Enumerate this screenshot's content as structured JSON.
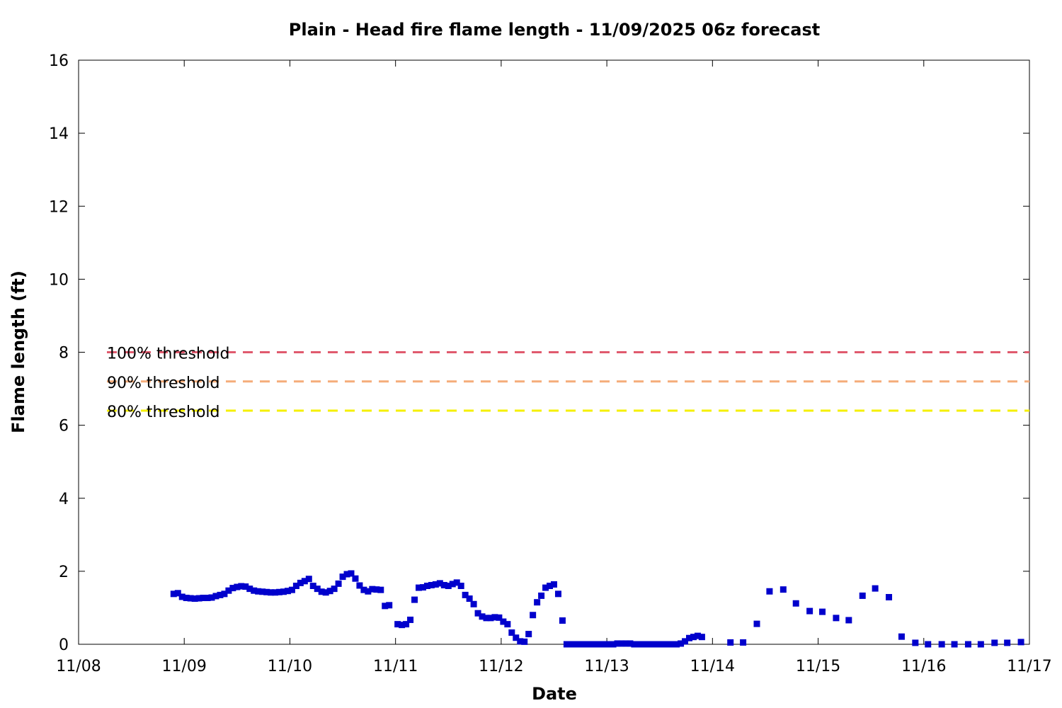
{
  "chart_data": {
    "type": "scatter",
    "title": "Plain - Head fire flame length - 11/09/2025 06z forecast",
    "xlabel": "Date",
    "ylabel": "Flame length (ft)",
    "x_tick_labels": [
      "11/08",
      "11/09",
      "11/10",
      "11/11",
      "11/12",
      "11/13",
      "11/14",
      "11/15",
      "11/16",
      "11/17"
    ],
    "xlim_days": [
      0,
      9
    ],
    "ylim": [
      0,
      16
    ],
    "y_ticks": [
      "0",
      "2",
      "4",
      "6",
      "8",
      "10",
      "12",
      "14",
      "16"
    ],
    "grid": false,
    "legend_placement": "left",
    "thresholds": [
      {
        "name": "100% threshold",
        "value": 8.0,
        "color": "#e05a6e"
      },
      {
        "name": "90% threshold",
        "value": 7.2,
        "color": "#f5ad7a"
      },
      {
        "name": "80% threshold",
        "value": 6.4,
        "color": "#f5f000"
      }
    ],
    "series": [
      {
        "marker_color": "#0000cc",
        "points": [
          [
            0.9,
            1.38
          ],
          [
            0.94,
            1.4
          ],
          [
            0.98,
            1.3
          ],
          [
            1.02,
            1.27
          ],
          [
            1.06,
            1.26
          ],
          [
            1.1,
            1.25
          ],
          [
            1.14,
            1.26
          ],
          [
            1.18,
            1.27
          ],
          [
            1.22,
            1.27
          ],
          [
            1.26,
            1.28
          ],
          [
            1.3,
            1.32
          ],
          [
            1.34,
            1.35
          ],
          [
            1.38,
            1.38
          ],
          [
            1.42,
            1.47
          ],
          [
            1.46,
            1.54
          ],
          [
            1.5,
            1.57
          ],
          [
            1.54,
            1.59
          ],
          [
            1.58,
            1.58
          ],
          [
            1.62,
            1.52
          ],
          [
            1.66,
            1.47
          ],
          [
            1.7,
            1.45
          ],
          [
            1.74,
            1.44
          ],
          [
            1.78,
            1.43
          ],
          [
            1.82,
            1.42
          ],
          [
            1.86,
            1.42
          ],
          [
            1.9,
            1.43
          ],
          [
            1.94,
            1.44
          ],
          [
            1.98,
            1.46
          ],
          [
            2.02,
            1.49
          ],
          [
            2.06,
            1.6
          ],
          [
            2.1,
            1.68
          ],
          [
            2.14,
            1.73
          ],
          [
            2.18,
            1.79
          ],
          [
            2.22,
            1.6
          ],
          [
            2.26,
            1.52
          ],
          [
            2.3,
            1.44
          ],
          [
            2.34,
            1.42
          ],
          [
            2.38,
            1.46
          ],
          [
            2.42,
            1.52
          ],
          [
            2.46,
            1.66
          ],
          [
            2.5,
            1.85
          ],
          [
            2.54,
            1.92
          ],
          [
            2.58,
            1.94
          ],
          [
            2.62,
            1.8
          ],
          [
            2.66,
            1.61
          ],
          [
            2.7,
            1.49
          ],
          [
            2.74,
            1.45
          ],
          [
            2.78,
            1.51
          ],
          [
            2.82,
            1.5
          ],
          [
            2.86,
            1.49
          ],
          [
            2.9,
            1.05
          ],
          [
            2.94,
            1.07
          ],
          [
            3.02,
            0.55
          ],
          [
            3.06,
            0.53
          ],
          [
            3.1,
            0.55
          ],
          [
            3.14,
            0.67
          ],
          [
            3.18,
            1.22
          ],
          [
            3.22,
            1.55
          ],
          [
            3.26,
            1.56
          ],
          [
            3.3,
            1.6
          ],
          [
            3.34,
            1.62
          ],
          [
            3.38,
            1.64
          ],
          [
            3.42,
            1.67
          ],
          [
            3.46,
            1.62
          ],
          [
            3.5,
            1.6
          ],
          [
            3.54,
            1.65
          ],
          [
            3.58,
            1.69
          ],
          [
            3.62,
            1.6
          ],
          [
            3.66,
            1.35
          ],
          [
            3.7,
            1.25
          ],
          [
            3.74,
            1.1
          ],
          [
            3.78,
            0.85
          ],
          [
            3.82,
            0.76
          ],
          [
            3.86,
            0.72
          ],
          [
            3.9,
            0.72
          ],
          [
            3.94,
            0.74
          ],
          [
            3.98,
            0.73
          ],
          [
            4.02,
            0.62
          ],
          [
            4.06,
            0.55
          ],
          [
            4.1,
            0.32
          ],
          [
            4.14,
            0.18
          ],
          [
            4.18,
            0.08
          ],
          [
            4.22,
            0.07
          ],
          [
            4.26,
            0.28
          ],
          [
            4.3,
            0.8
          ],
          [
            4.34,
            1.15
          ],
          [
            4.38,
            1.33
          ],
          [
            4.42,
            1.55
          ],
          [
            4.46,
            1.6
          ],
          [
            4.5,
            1.64
          ],
          [
            4.54,
            1.38
          ],
          [
            4.58,
            0.65
          ],
          [
            4.62,
            0.0
          ],
          [
            4.66,
            0.0
          ],
          [
            4.7,
            0.0
          ],
          [
            4.74,
            0.0
          ],
          [
            4.78,
            0.0
          ],
          [
            4.82,
            0.0
          ],
          [
            4.86,
            0.0
          ],
          [
            4.9,
            0.0
          ],
          [
            4.94,
            0.0
          ],
          [
            4.98,
            0.0
          ],
          [
            5.02,
            0.0
          ],
          [
            5.06,
            0.0
          ],
          [
            5.1,
            0.02
          ],
          [
            5.14,
            0.02
          ],
          [
            5.18,
            0.02
          ],
          [
            5.22,
            0.02
          ],
          [
            5.26,
            0.0
          ],
          [
            5.3,
            0.0
          ],
          [
            5.34,
            0.0
          ],
          [
            5.38,
            0.0
          ],
          [
            5.42,
            0.0
          ],
          [
            5.46,
            0.0
          ],
          [
            5.5,
            0.0
          ],
          [
            5.54,
            0.0
          ],
          [
            5.58,
            0.0
          ],
          [
            5.62,
            0.0
          ],
          [
            5.66,
            0.0
          ],
          [
            5.7,
            0.02
          ],
          [
            5.74,
            0.08
          ],
          [
            5.78,
            0.17
          ],
          [
            5.82,
            0.2
          ],
          [
            5.86,
            0.23
          ],
          [
            5.9,
            0.2
          ],
          [
            6.17,
            0.05
          ],
          [
            6.29,
            0.05
          ],
          [
            6.42,
            0.56
          ],
          [
            6.54,
            1.45
          ],
          [
            6.67,
            1.5
          ],
          [
            6.79,
            1.12
          ],
          [
            6.92,
            0.91
          ],
          [
            7.04,
            0.89
          ],
          [
            7.17,
            0.72
          ],
          [
            7.29,
            0.66
          ],
          [
            7.42,
            1.33
          ],
          [
            7.54,
            1.53
          ],
          [
            7.67,
            1.29
          ],
          [
            7.79,
            0.21
          ],
          [
            7.92,
            0.04
          ],
          [
            8.04,
            0.0
          ],
          [
            8.17,
            0.0
          ],
          [
            8.29,
            0.0
          ],
          [
            8.42,
            0.0
          ],
          [
            8.54,
            0.0
          ],
          [
            8.67,
            0.04
          ],
          [
            8.79,
            0.04
          ],
          [
            8.92,
            0.06
          ]
        ]
      }
    ]
  }
}
